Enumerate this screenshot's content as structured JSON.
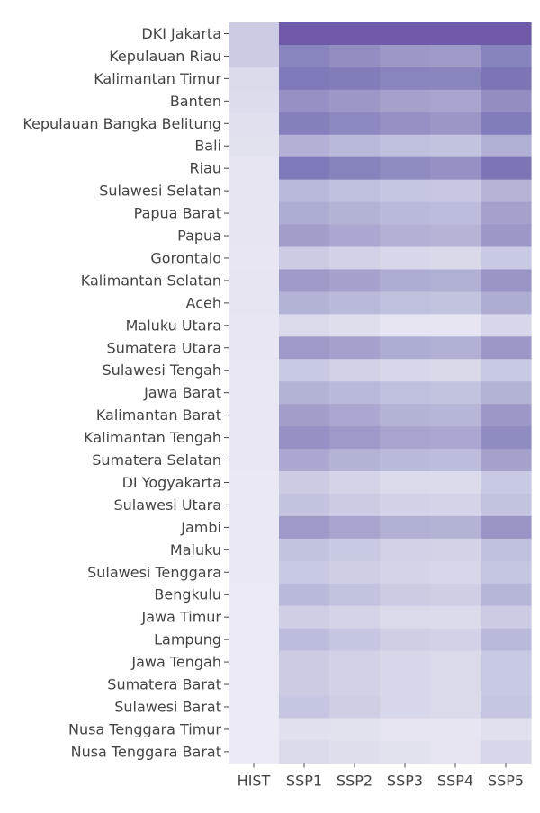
{
  "chart_data": {
    "type": "heatmap",
    "title": "",
    "xlabel": "",
    "ylabel": "",
    "colorscale": [
      "#efedf5",
      "#dadaeb",
      "#bcbddc",
      "#9e9ac8",
      "#807dba",
      "#6a51a3"
    ],
    "value_range": [
      0,
      1
    ],
    "columns": [
      "HIST",
      "SSP1",
      "SSP2",
      "SSP3",
      "SSP4",
      "SSP5"
    ],
    "rows": [
      "DKI Jakarta",
      "Kepulauan Riau",
      "Kalimantan Timur",
      "Banten",
      "Kepulauan Bangka Belitung",
      "Bali",
      "Riau",
      "Sulawesi Selatan",
      "Papua Barat",
      "Papua",
      "Gorontalo",
      "Kalimantan Selatan",
      "Aceh",
      "Maluku Utara",
      "Sumatera Utara",
      "Sulawesi Tengah",
      "Jawa Barat",
      "Kalimantan Barat",
      "Kalimantan Tengah",
      "Sumatera Selatan",
      "DI Yogyakarta",
      "Sulawesi Utara",
      "Jambi",
      "Maluku",
      "Sulawesi Tenggara",
      "Bengkulu",
      "Jawa Timur",
      "Lampung",
      "Jawa Tengah",
      "Sumatera Barat",
      "Sulawesi Barat",
      "Nusa Tenggara Timur",
      "Nusa Tenggara Barat"
    ],
    "values": [
      [
        0.3,
        0.96,
        0.96,
        0.96,
        0.96,
        0.96
      ],
      [
        0.3,
        0.75,
        0.68,
        0.62,
        0.6,
        0.76
      ],
      [
        0.2,
        0.82,
        0.8,
        0.75,
        0.74,
        0.84
      ],
      [
        0.18,
        0.66,
        0.62,
        0.56,
        0.54,
        0.68
      ],
      [
        0.14,
        0.78,
        0.72,
        0.66,
        0.63,
        0.8
      ],
      [
        0.12,
        0.47,
        0.42,
        0.38,
        0.36,
        0.48
      ],
      [
        0.1,
        0.82,
        0.76,
        0.7,
        0.66,
        0.84
      ],
      [
        0.09,
        0.42,
        0.38,
        0.34,
        0.33,
        0.45
      ],
      [
        0.08,
        0.5,
        0.46,
        0.42,
        0.4,
        0.56
      ],
      [
        0.08,
        0.58,
        0.52,
        0.47,
        0.45,
        0.62
      ],
      [
        0.07,
        0.3,
        0.26,
        0.22,
        0.21,
        0.32
      ],
      [
        0.08,
        0.6,
        0.56,
        0.5,
        0.48,
        0.64
      ],
      [
        0.08,
        0.46,
        0.42,
        0.38,
        0.36,
        0.5
      ],
      [
        0.07,
        0.2,
        0.16,
        0.1,
        0.08,
        0.22
      ],
      [
        0.07,
        0.6,
        0.56,
        0.5,
        0.48,
        0.62
      ],
      [
        0.06,
        0.32,
        0.26,
        0.22,
        0.21,
        0.32
      ],
      [
        0.06,
        0.46,
        0.42,
        0.38,
        0.36,
        0.46
      ],
      [
        0.06,
        0.58,
        0.52,
        0.46,
        0.44,
        0.62
      ],
      [
        0.06,
        0.66,
        0.6,
        0.54,
        0.52,
        0.7
      ],
      [
        0.06,
        0.52,
        0.46,
        0.42,
        0.4,
        0.56
      ],
      [
        0.05,
        0.3,
        0.24,
        0.2,
        0.19,
        0.32
      ],
      [
        0.05,
        0.36,
        0.3,
        0.26,
        0.24,
        0.36
      ],
      [
        0.05,
        0.6,
        0.54,
        0.48,
        0.46,
        0.64
      ],
      [
        0.05,
        0.36,
        0.32,
        0.26,
        0.25,
        0.38
      ],
      [
        0.05,
        0.32,
        0.28,
        0.24,
        0.22,
        0.34
      ],
      [
        0.04,
        0.42,
        0.36,
        0.3,
        0.28,
        0.44
      ],
      [
        0.04,
        0.28,
        0.24,
        0.2,
        0.19,
        0.3
      ],
      [
        0.04,
        0.4,
        0.34,
        0.28,
        0.26,
        0.42
      ],
      [
        0.04,
        0.3,
        0.26,
        0.22,
        0.2,
        0.32
      ],
      [
        0.04,
        0.3,
        0.26,
        0.22,
        0.2,
        0.32
      ],
      [
        0.04,
        0.34,
        0.28,
        0.22,
        0.2,
        0.34
      ],
      [
        0.03,
        0.14,
        0.12,
        0.09,
        0.08,
        0.14
      ],
      [
        0.03,
        0.2,
        0.16,
        0.12,
        0.1,
        0.22
      ]
    ]
  }
}
